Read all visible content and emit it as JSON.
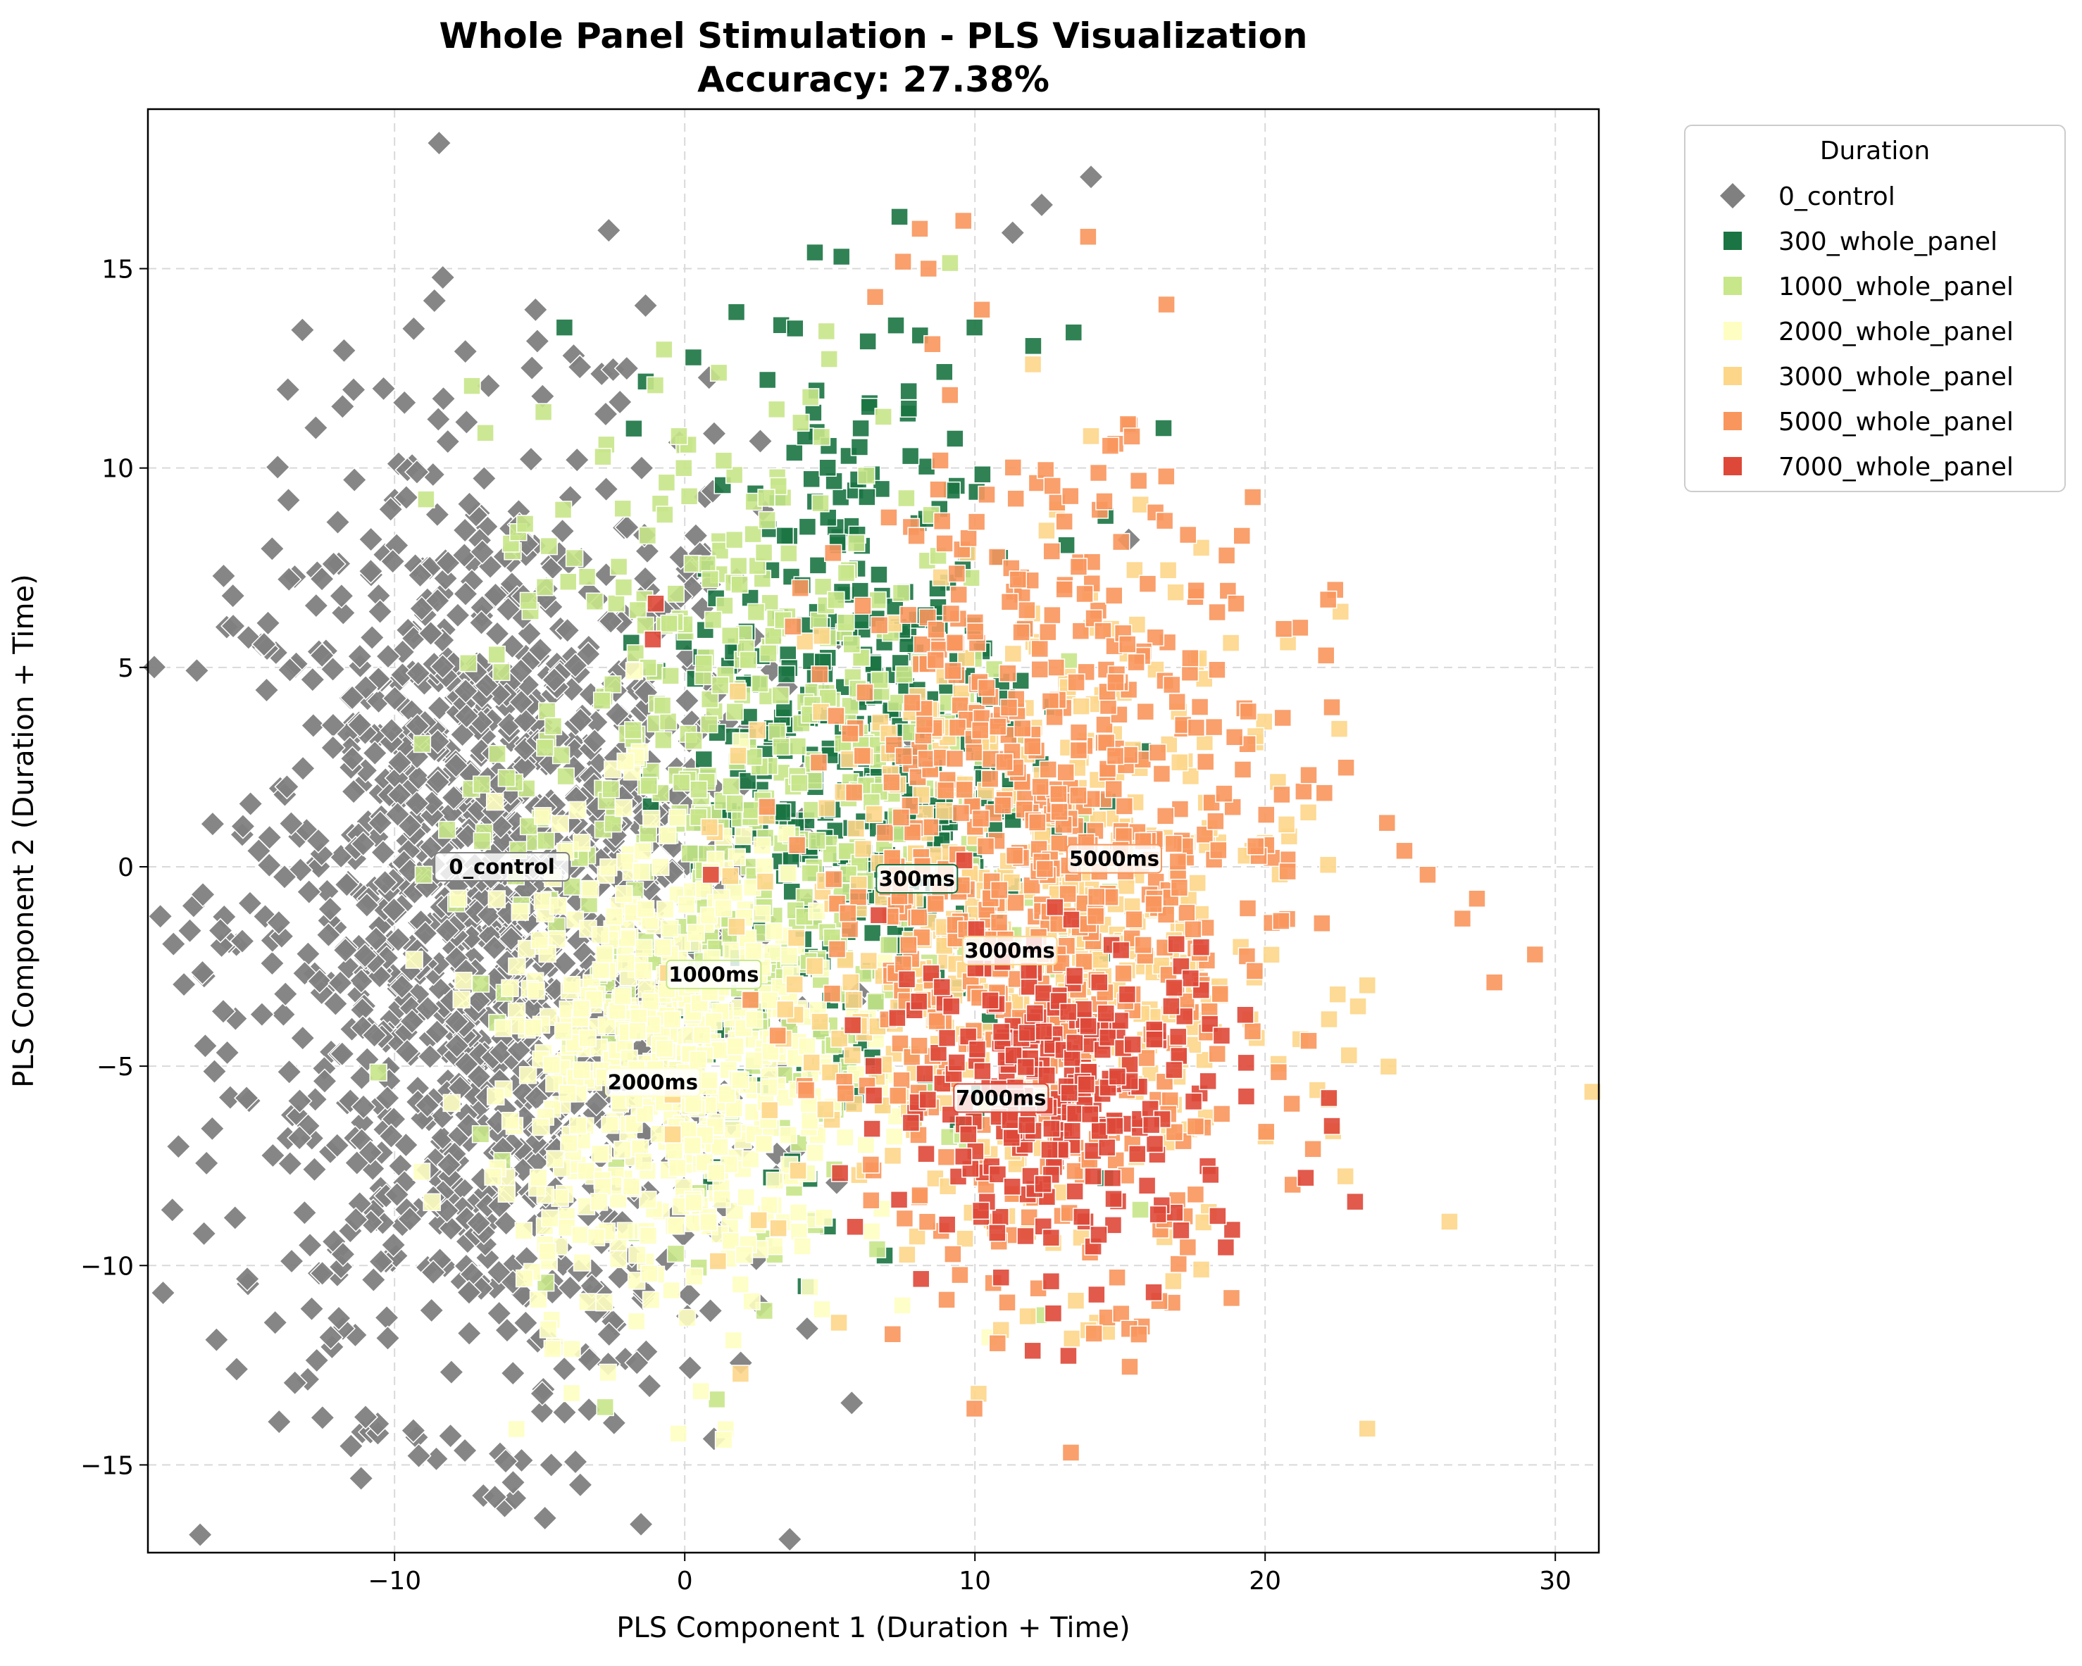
{
  "chart_data": {
    "type": "scatter",
    "title_line1": "Whole Panel Stimulation - PLS Visualization",
    "title_line2": "Accuracy: 27.38%",
    "xlabel": "PLS Component 1 (Duration + Time)",
    "ylabel": "PLS Component 2 (Duration + Time)",
    "xlim": [
      -18.5,
      31.5
    ],
    "ylim": [
      -17.2,
      19.0
    ],
    "xticks": [
      -10,
      0,
      10,
      20,
      30
    ],
    "xtick_labels": [
      "−10",
      "0",
      "10",
      "20",
      "30"
    ],
    "yticks": [
      -15,
      -10,
      -5,
      0,
      5,
      10,
      15
    ],
    "ytick_labels": [
      "−15",
      "−10",
      "−5",
      "0",
      "5",
      "10",
      "15"
    ],
    "grid": true,
    "legend": {
      "title": "Duration",
      "placement": "outside-upper-right",
      "entries": [
        "0_control",
        "300_whole_panel",
        "1000_whole_panel",
        "2000_whole_panel",
        "3000_whole_panel",
        "5000_whole_panel",
        "7000_whole_panel"
      ]
    },
    "series": [
      {
        "name": "0_control",
        "marker": "diamond",
        "color": "#808080",
        "center": [
          -6.5,
          -1.5
        ],
        "spread": [
          4.5,
          6.0
        ],
        "count": 1500,
        "points": [
          [
            14.0,
            17.3
          ],
          [
            12.3,
            16.6
          ],
          [
            11.3,
            15.9
          ],
          [
            -4.9,
            11.8
          ],
          [
            -2.0,
            12.5
          ],
          [
            15.3,
            8.2
          ],
          [
            -3.6,
            -15.5
          ],
          [
            -4.6,
            -15.0
          ],
          [
            -11.0,
            -13.8
          ],
          [
            -12.2,
            -11.8
          ],
          [
            -16.0,
            -1.6
          ],
          [
            -15.1,
            -5.8
          ],
          [
            2.6,
            -11.0
          ],
          [
            -12.5,
            5.3
          ],
          [
            -10.5,
            6.4
          ]
        ]
      },
      {
        "name": "300_whole_panel",
        "marker": "square",
        "color": "#1a7443",
        "center": [
          6.0,
          3.0
        ],
        "spread": [
          3.0,
          5.0
        ],
        "count": 420,
        "points": [
          [
            7.4,
            16.3
          ],
          [
            5.4,
            15.3
          ],
          [
            13.4,
            13.4
          ],
          [
            16.5,
            11.0
          ],
          [
            14.5,
            8.8
          ],
          [
            15.8,
            2.9
          ],
          [
            3.8,
            13.5
          ]
        ]
      },
      {
        "name": "1000_whole_panel",
        "marker": "square",
        "color": "#c8e68a",
        "center": [
          2.0,
          1.5
        ],
        "spread": [
          4.5,
          5.0
        ],
        "count": 520,
        "points": [
          [
            -0.2,
            10.8
          ],
          [
            -5.5,
            8.6
          ],
          [
            -9.0,
            -0.2
          ],
          [
            -4.0,
            -4.7
          ],
          [
            15.7,
            -8.6
          ]
        ]
      },
      {
        "name": "2000_whole_panel",
        "marker": "square",
        "color": "#fefec2",
        "center": [
          -0.5,
          -5.0
        ],
        "spread": [
          3.0,
          3.0
        ],
        "count": 600,
        "points": [
          [
            -5.8,
            -14.1
          ],
          [
            -3.9,
            -13.2
          ],
          [
            -4.7,
            -11.6
          ],
          [
            7.5,
            -11.0
          ],
          [
            10.5,
            -11.8
          ],
          [
            -0.3,
            -9.0
          ],
          [
            -7.8,
            -0.8
          ]
        ]
      },
      {
        "name": "3000_whole_panel",
        "marker": "square",
        "color": "#fdd68a",
        "center": [
          12.0,
          -2.0
        ],
        "spread": [
          4.5,
          4.0
        ],
        "count": 520,
        "points": [
          [
            22.5,
            -3.2
          ],
          [
            23.2,
            -3.5
          ],
          [
            21.8,
            -5.6
          ],
          [
            17.8,
            8.0
          ],
          [
            14.0,
            10.8
          ],
          [
            17.8,
            -10.1
          ],
          [
            12.0,
            12.6
          ]
        ]
      },
      {
        "name": "5000_whole_panel",
        "marker": "square",
        "color": "#f8965d",
        "center": [
          12.5,
          0.0
        ],
        "spread": [
          4.0,
          5.0
        ],
        "count": 620,
        "points": [
          [
            29.3,
            -2.2
          ],
          [
            27.9,
            -2.9
          ],
          [
            27.3,
            -0.8
          ],
          [
            26.8,
            -1.3
          ],
          [
            25.6,
            -0.2
          ],
          [
            24.2,
            1.1
          ],
          [
            24.8,
            0.4
          ],
          [
            22.3,
            4.0
          ],
          [
            22.1,
            5.3
          ],
          [
            21.5,
            2.3
          ],
          [
            19.2,
            8.3
          ],
          [
            19.0,
            6.6
          ],
          [
            16.6,
            14.1
          ],
          [
            13.9,
            15.8
          ],
          [
            9.6,
            16.2
          ],
          [
            8.4,
            15.0
          ],
          [
            8.1,
            16.0
          ],
          [
            14.9,
            -10.3
          ]
        ]
      },
      {
        "name": "7000_whole_panel",
        "marker": "square",
        "color": "#de4838",
        "center": [
          13.0,
          -5.5
        ],
        "spread": [
          3.0,
          2.0
        ],
        "count": 260,
        "points": [
          [
            23.1,
            -8.4
          ],
          [
            22.3,
            -6.5
          ],
          [
            21.4,
            -7.8
          ],
          [
            22.2,
            -5.8
          ],
          [
            12.7,
            -11.2
          ],
          [
            10.9,
            -10.3
          ],
          [
            0.9,
            -0.2
          ],
          [
            -1.1,
            5.7
          ],
          [
            -1.0,
            6.6
          ]
        ]
      }
    ],
    "annotations": [
      {
        "text": "0_control",
        "x": -6.3,
        "y": 0.0,
        "series": 0
      },
      {
        "text": "300ms",
        "x": 8.0,
        "y": -0.3,
        "series": 1
      },
      {
        "text": "1000ms",
        "x": 1.0,
        "y": -2.7,
        "series": 2
      },
      {
        "text": "2000ms",
        "x": -1.1,
        "y": -5.4,
        "series": 3
      },
      {
        "text": "3000ms",
        "x": 11.2,
        "y": -2.1,
        "series": 4
      },
      {
        "text": "5000ms",
        "x": 14.8,
        "y": 0.2,
        "series": 5
      },
      {
        "text": "7000ms",
        "x": 10.9,
        "y": -5.8,
        "series": 6
      }
    ]
  }
}
